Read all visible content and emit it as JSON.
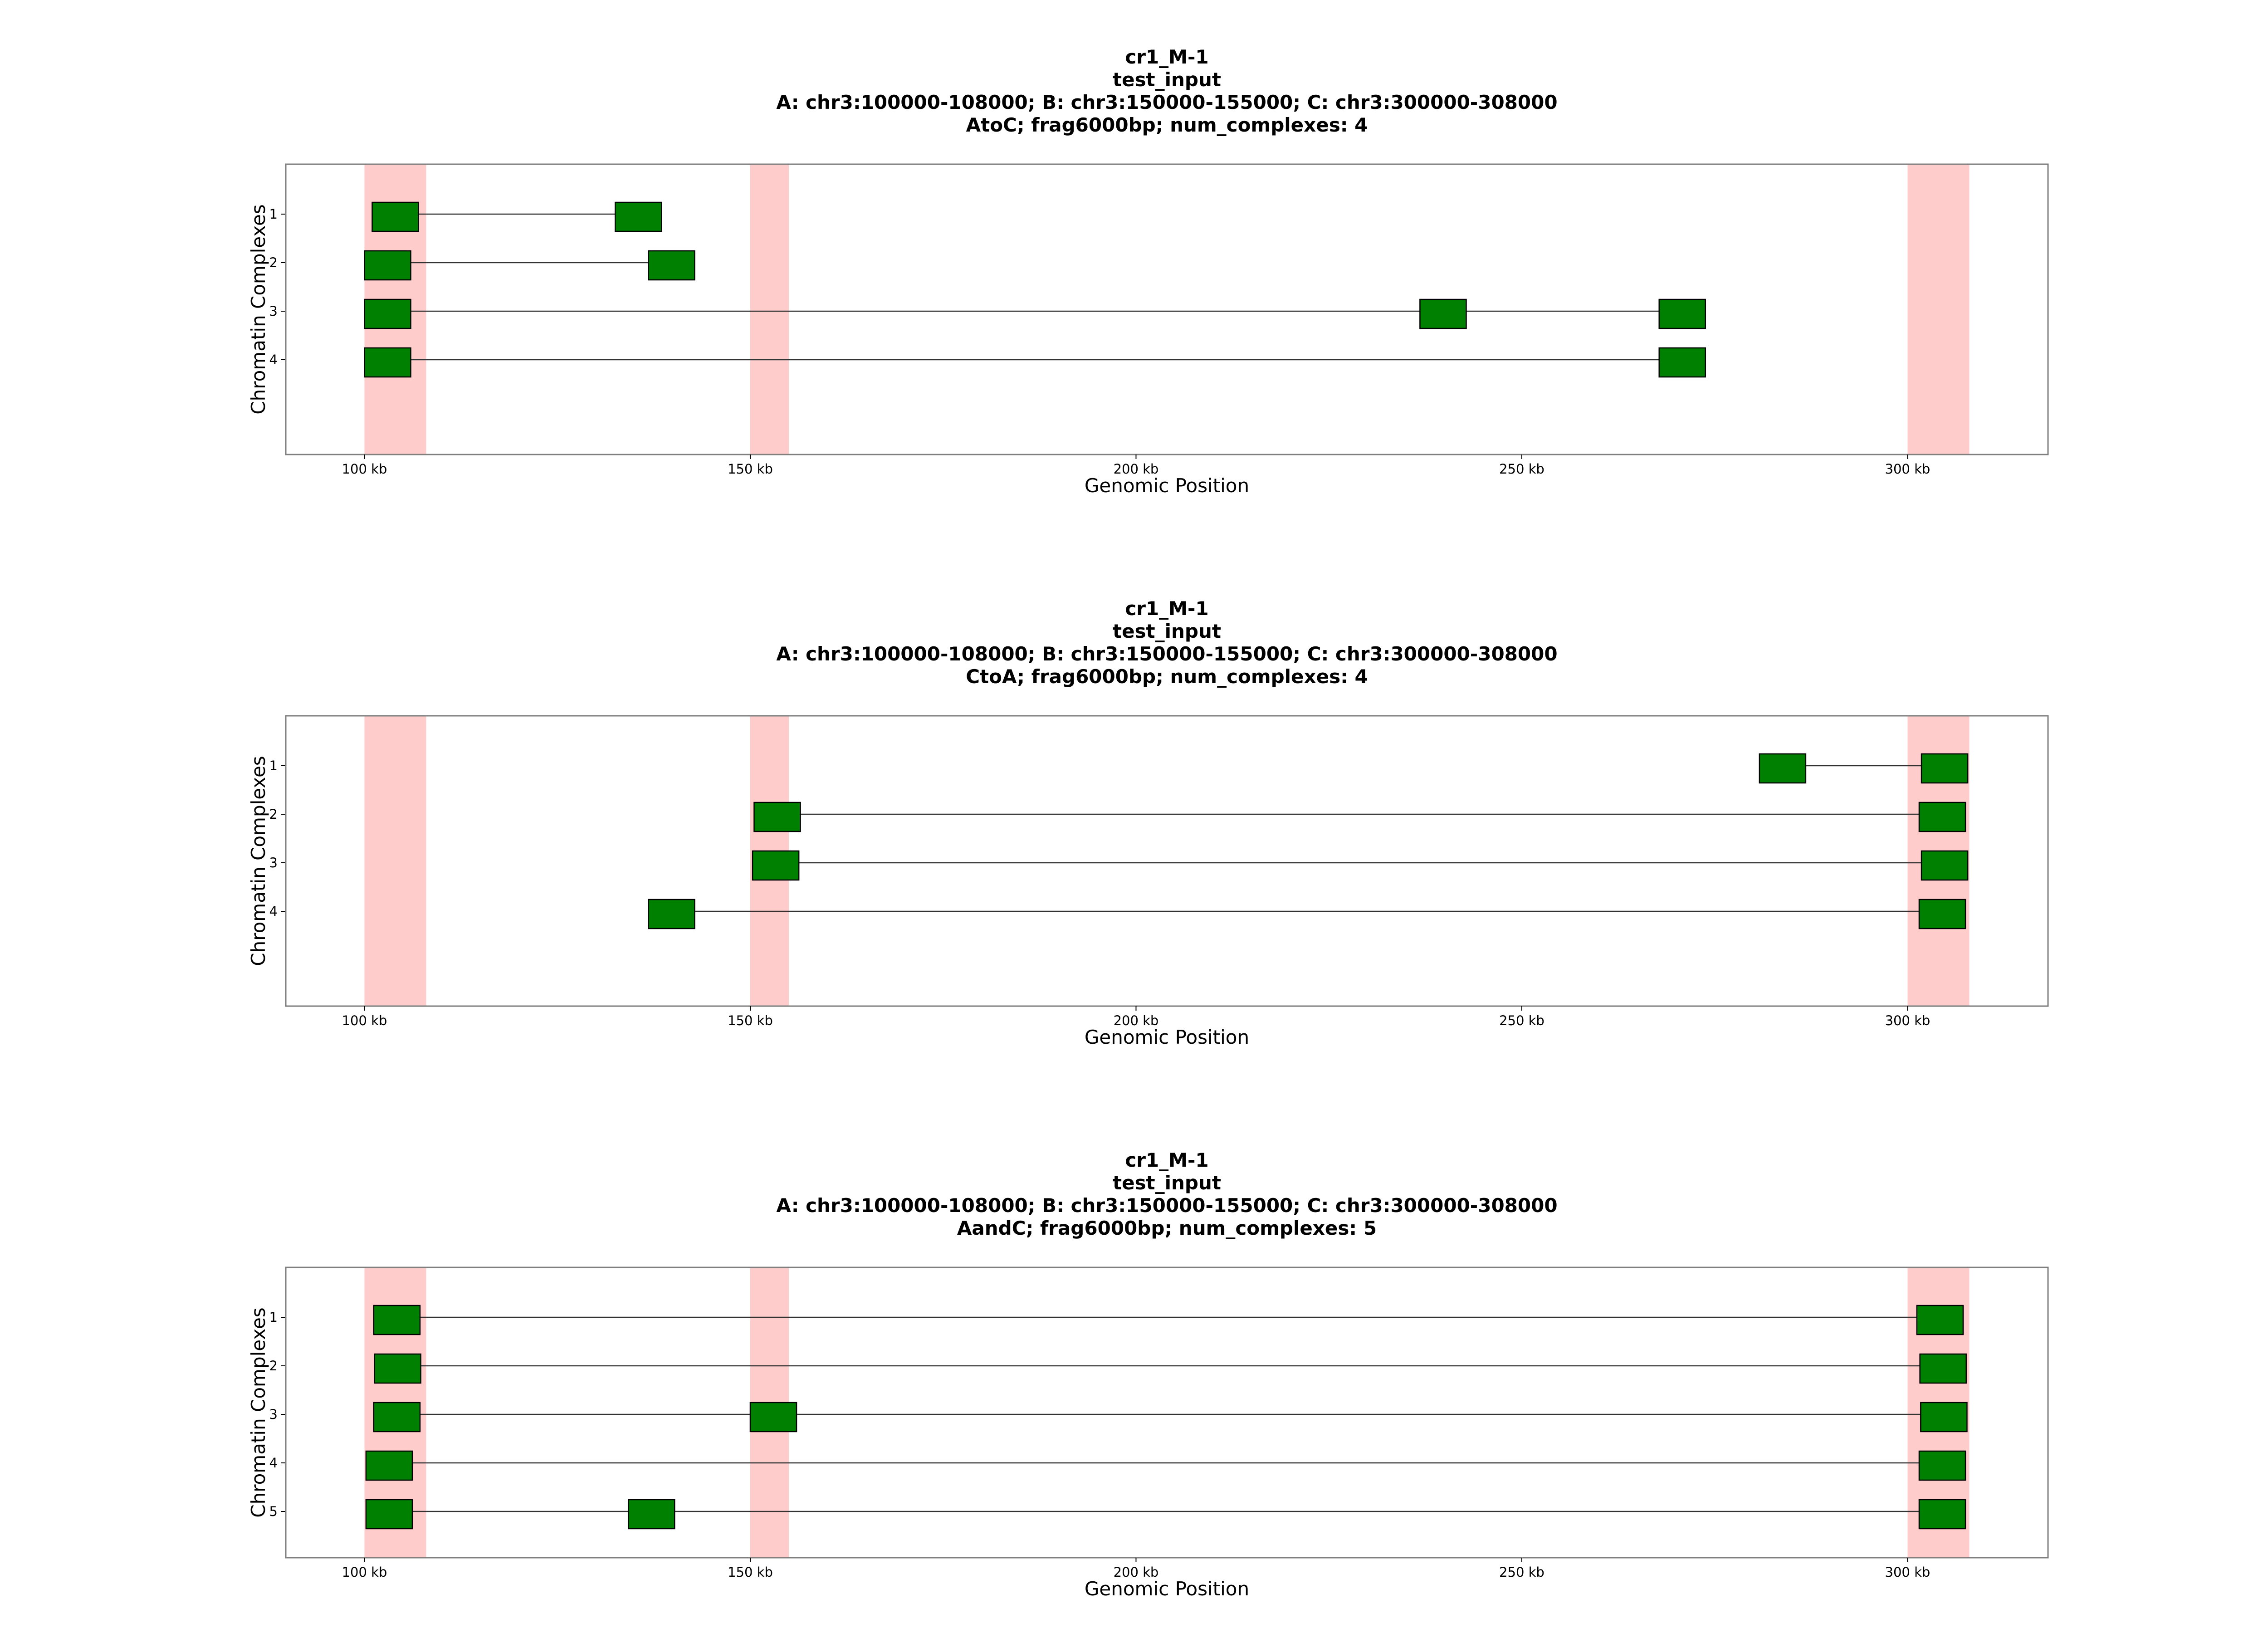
{
  "chart_data": [
    {
      "type": "genomic-interaction",
      "title_lines": [
        "cr1_M-1",
        "test_input",
        "A: chr3:100000-108000; B: chr3:150000-155000; C: chr3:300000-308000",
        "AtoC; frag6000bp; num_complexes: 4"
      ],
      "xlabel": "Genomic Position",
      "ylabel": "Chromatin Complexes",
      "xlim": [
        89800,
        318200
      ],
      "x_ticks": [
        100000,
        150000,
        200000,
        250000,
        300000
      ],
      "x_tick_labels": [
        "100 kb",
        "150 kb",
        "200 kb",
        "250 kb",
        "300 kb"
      ],
      "y_ticks": [
        "1",
        "2",
        "3",
        "4"
      ],
      "regions": [
        [
          100000,
          108000
        ],
        [
          150000,
          155000
        ],
        [
          300000,
          308000
        ]
      ],
      "fragment_length": 6000,
      "complexes": [
        {
          "id": "1",
          "fragments": [
            101000,
            132500
          ]
        },
        {
          "id": "2",
          "fragments": [
            100000,
            136800
          ]
        },
        {
          "id": "3",
          "fragments": [
            100000,
            236800,
            267800
          ]
        },
        {
          "id": "4",
          "fragments": [
            100000,
            267800
          ]
        }
      ]
    },
    {
      "type": "genomic-interaction",
      "title_lines": [
        "cr1_M-1",
        "test_input",
        "A: chr3:100000-108000; B: chr3:150000-155000; C: chr3:300000-308000",
        "CtoA; frag6000bp; num_complexes: 4"
      ],
      "xlabel": "Genomic Position",
      "ylabel": "Chromatin Complexes",
      "xlim": [
        89800,
        318200
      ],
      "x_ticks": [
        100000,
        150000,
        200000,
        250000,
        300000
      ],
      "x_tick_labels": [
        "100 kb",
        "150 kb",
        "200 kb",
        "250 kb",
        "300 kb"
      ],
      "y_ticks": [
        "1",
        "2",
        "3",
        "4"
      ],
      "regions": [
        [
          100000,
          108000
        ],
        [
          150000,
          155000
        ],
        [
          300000,
          308000
        ]
      ],
      "fragment_length": 6000,
      "complexes": [
        {
          "id": "1",
          "fragments": [
            280800,
            301800
          ]
        },
        {
          "id": "2",
          "fragments": [
            150500,
            301500
          ]
        },
        {
          "id": "3",
          "fragments": [
            150300,
            301800
          ]
        },
        {
          "id": "4",
          "fragments": [
            136800,
            301500
          ]
        }
      ]
    },
    {
      "type": "genomic-interaction",
      "title_lines": [
        "cr1_M-1",
        "test_input",
        "A: chr3:100000-108000; B: chr3:150000-155000; C: chr3:300000-308000",
        "AandC; frag6000bp; num_complexes: 5"
      ],
      "xlabel": "Genomic Position",
      "ylabel": "Chromatin Complexes",
      "xlim": [
        89800,
        318200
      ],
      "x_ticks": [
        100000,
        150000,
        200000,
        250000,
        300000
      ],
      "x_tick_labels": [
        "100 kb",
        "150 kb",
        "200 kb",
        "250 kb",
        "300 kb"
      ],
      "y_ticks": [
        "1",
        "2",
        "3",
        "4",
        "5"
      ],
      "regions": [
        [
          100000,
          108000
        ],
        [
          150000,
          155000
        ],
        [
          300000,
          308000
        ]
      ],
      "fragment_length": 6000,
      "complexes": [
        {
          "id": "1",
          "fragments": [
            101200,
            301200
          ]
        },
        {
          "id": "2",
          "fragments": [
            101300,
            301600
          ]
        },
        {
          "id": "3",
          "fragments": [
            101200,
            150000,
            301700
          ]
        },
        {
          "id": "4",
          "fragments": [
            100200,
            301500
          ]
        },
        {
          "id": "5",
          "fragments": [
            100200,
            134200,
            301500
          ]
        }
      ]
    }
  ],
  "colors": {
    "region": "#ffcccc",
    "fragment_fill": "#008000",
    "fragment_edge": "#000000",
    "link": "#333333",
    "axes": "#7f7f7f"
  }
}
